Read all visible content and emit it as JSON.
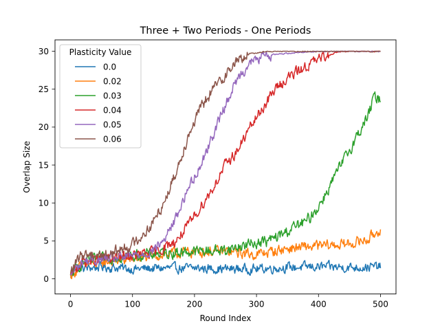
{
  "chart_data": {
    "type": "line",
    "title": "Three + Two Periods - One Periods",
    "xlabel": "Round Index",
    "ylabel": "Overlap Size",
    "xlim": [
      -25,
      525
    ],
    "ylim": [
      -2,
      31.5
    ],
    "xticks": [
      0,
      100,
      200,
      300,
      400,
      500
    ],
    "yticks": [
      0,
      5,
      10,
      15,
      20,
      25,
      30
    ],
    "grid": false,
    "legend": {
      "title": "Plasticity Value",
      "placement": "top-left"
    },
    "x_step": 1,
    "series": [
      {
        "name": "0.0",
        "color": "#1f77b4",
        "control_points": [
          [
            0,
            0.2
          ],
          [
            10,
            1.3
          ],
          [
            50,
            1.6
          ],
          [
            100,
            1.3
          ],
          [
            150,
            1.4
          ],
          [
            200,
            1.4
          ],
          [
            250,
            1.3
          ],
          [
            300,
            1.3
          ],
          [
            350,
            1.5
          ],
          [
            400,
            1.6
          ],
          [
            450,
            1.5
          ],
          [
            500,
            1.6
          ]
        ],
        "noise": 0.75
      },
      {
        "name": "0.02",
        "color": "#ff7f0e",
        "control_points": [
          [
            0,
            0.5
          ],
          [
            20,
            1.8
          ],
          [
            60,
            2.3
          ],
          [
            100,
            2.6
          ],
          [
            150,
            3.2
          ],
          [
            200,
            3.6
          ],
          [
            250,
            3.6
          ],
          [
            300,
            3.2
          ],
          [
            350,
            4.0
          ],
          [
            400,
            4.3
          ],
          [
            450,
            4.6
          ],
          [
            480,
            5.2
          ],
          [
            500,
            6.6
          ]
        ],
        "noise": 0.85
      },
      {
        "name": "0.03",
        "color": "#2ca02c",
        "control_points": [
          [
            0,
            0.5
          ],
          [
            20,
            2.2
          ],
          [
            60,
            2.8
          ],
          [
            100,
            3.0
          ],
          [
            150,
            3.4
          ],
          [
            200,
            3.6
          ],
          [
            250,
            3.8
          ],
          [
            300,
            4.8
          ],
          [
            320,
            5.0
          ],
          [
            340,
            5.8
          ],
          [
            360,
            6.8
          ],
          [
            380,
            7.5
          ],
          [
            400,
            9.5
          ],
          [
            420,
            12.5
          ],
          [
            440,
            15.5
          ],
          [
            460,
            18.5
          ],
          [
            480,
            21.5
          ],
          [
            490,
            24.0
          ],
          [
            500,
            23.6
          ]
        ],
        "noise": 0.9
      },
      {
        "name": "0.04",
        "color": "#d62728",
        "control_points": [
          [
            0,
            0.5
          ],
          [
            20,
            2.3
          ],
          [
            60,
            2.6
          ],
          [
            100,
            3.0
          ],
          [
            140,
            3.6
          ],
          [
            170,
            5.0
          ],
          [
            190,
            7.0
          ],
          [
            210,
            9.5
          ],
          [
            230,
            12.0
          ],
          [
            250,
            15.0
          ],
          [
            270,
            17.0
          ],
          [
            290,
            20.0
          ],
          [
            310,
            22.5
          ],
          [
            330,
            25.0
          ],
          [
            350,
            26.5
          ],
          [
            370,
            27.5
          ],
          [
            390,
            28.5
          ],
          [
            410,
            29.3
          ],
          [
            430,
            29.9
          ],
          [
            450,
            30.0
          ],
          [
            500,
            30.0
          ]
        ],
        "noise": 0.85
      },
      {
        "name": "0.05",
        "color": "#9467bd",
        "control_points": [
          [
            0,
            0.5
          ],
          [
            20,
            2.3
          ],
          [
            60,
            2.6
          ],
          [
            100,
            3.0
          ],
          [
            130,
            3.6
          ],
          [
            150,
            5.0
          ],
          [
            170,
            8.0
          ],
          [
            190,
            12.0
          ],
          [
            210,
            15.0
          ],
          [
            230,
            19.0
          ],
          [
            250,
            23.0
          ],
          [
            270,
            26.5
          ],
          [
            290,
            28.5
          ],
          [
            310,
            29.3
          ],
          [
            330,
            29.6
          ],
          [
            360,
            29.8
          ],
          [
            400,
            30.0
          ],
          [
            500,
            30.0
          ]
        ],
        "noise": 0.8
      },
      {
        "name": "0.06",
        "color": "#8c564b",
        "control_points": [
          [
            0,
            1.0
          ],
          [
            20,
            3.3
          ],
          [
            60,
            3.2
          ],
          [
            100,
            4.5
          ],
          [
            130,
            7.0
          ],
          [
            150,
            10.0
          ],
          [
            170,
            14.0
          ],
          [
            190,
            19.0
          ],
          [
            210,
            22.5
          ],
          [
            230,
            25.0
          ],
          [
            250,
            27.0
          ],
          [
            270,
            28.8
          ],
          [
            290,
            29.7
          ],
          [
            320,
            30.0
          ],
          [
            500,
            30.0
          ]
        ],
        "noise": 0.9
      }
    ]
  }
}
